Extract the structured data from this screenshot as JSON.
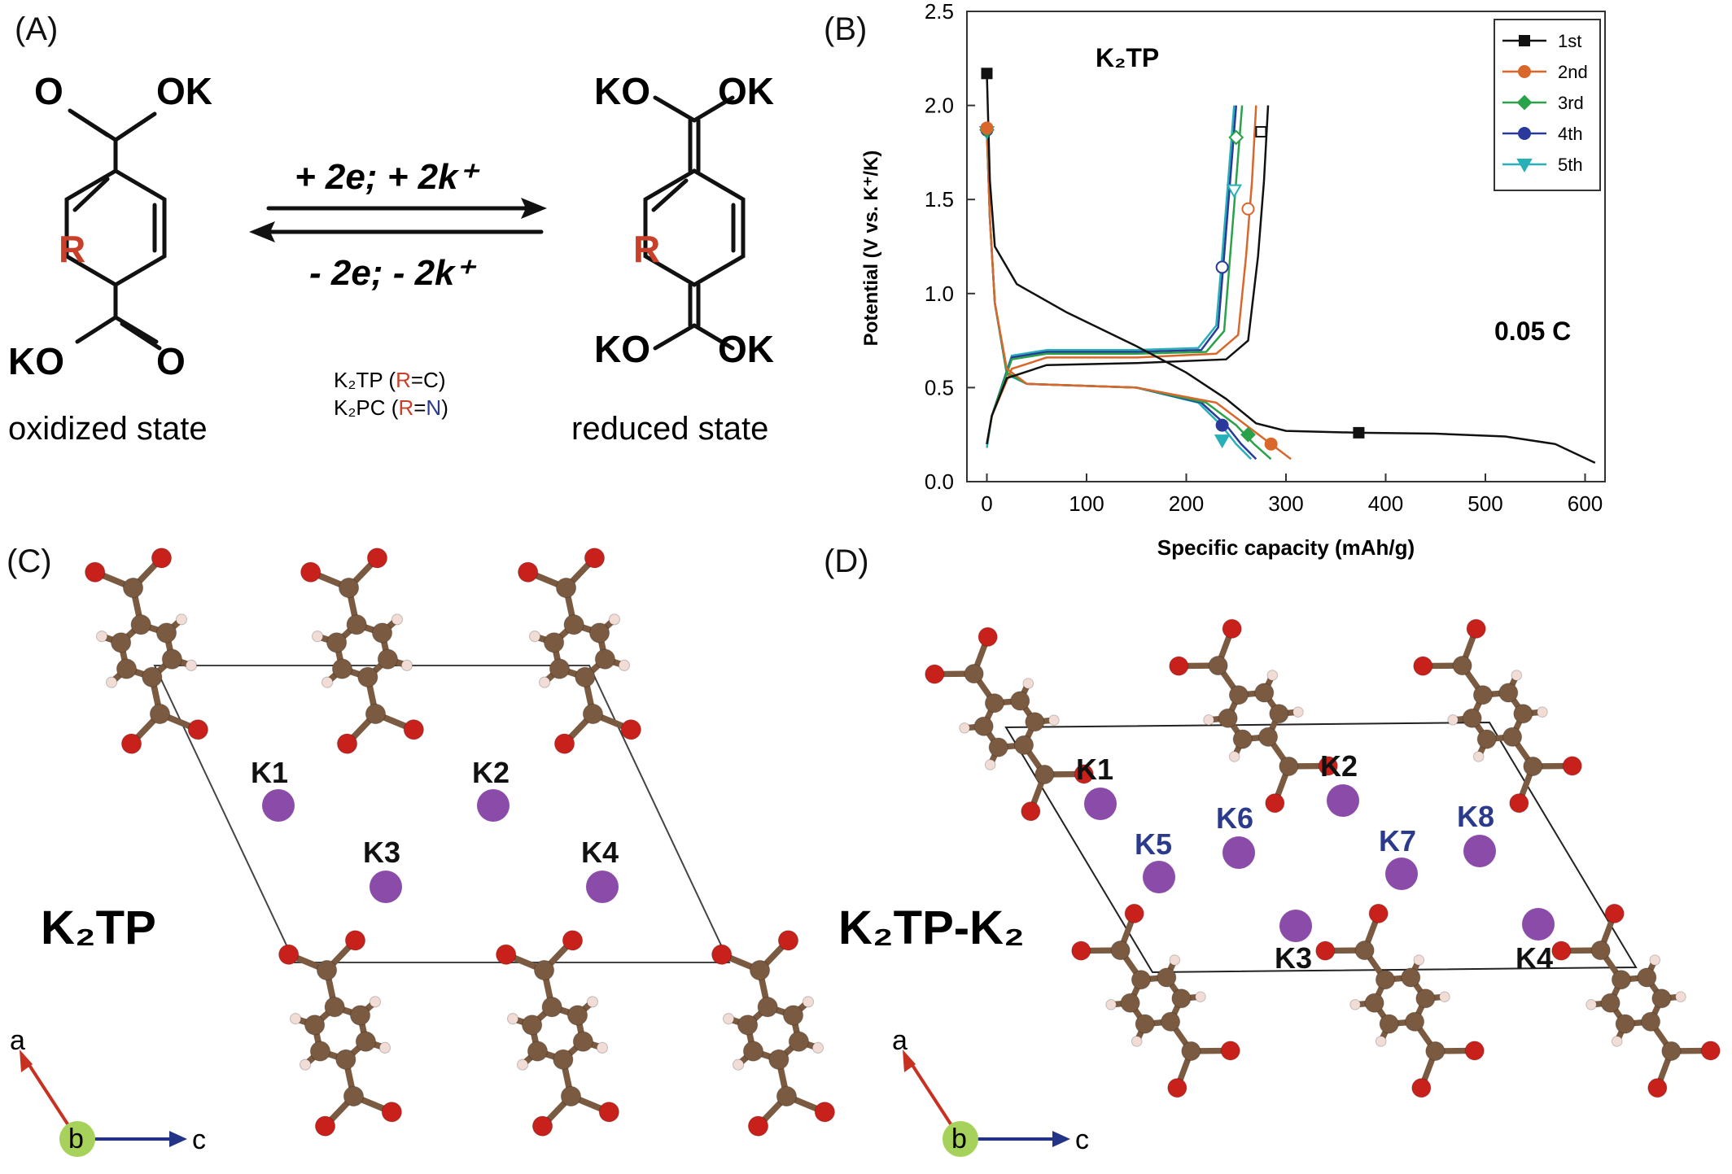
{
  "panels": {
    "a": {
      "label": "(A)",
      "oxidized": {
        "top_o": "O",
        "top_ok": "OK",
        "ring_r": "R",
        "bot_ko": "KO",
        "bot_o": "O",
        "state": "oxidized state"
      },
      "reduced": {
        "top_ko": "KO",
        "top_ok": "OK",
        "ring_r": "R",
        "bot_ko": "KO",
        "bot_ok": "OK",
        "state": "reduced state"
      },
      "forward": "+ 2e; + 2k⁺",
      "reverse": "- 2e; - 2k⁺",
      "species": [
        {
          "name": "K₂TP (",
          "r": "R",
          "eq": "=",
          "elem": "C",
          ")": ")"
        },
        {
          "name": "K₂PC (",
          "r": "R",
          "eq": "=",
          "elem": "N",
          ")": ")"
        }
      ]
    },
    "b": {
      "label": "(B)"
    },
    "c": {
      "label": "(C)",
      "title": "K₂TP",
      "k_labels": [
        "K1",
        "K2",
        "K3",
        "K4"
      ],
      "axis_a": "a",
      "axis_b": "b",
      "axis_c": "c"
    },
    "d": {
      "label": "(D)",
      "title": "K₂TP-K₂",
      "k_labels_black": [
        "K1",
        "K2",
        "K3",
        "K4"
      ],
      "k_labels_blue": [
        "K5",
        "K6",
        "K7",
        "K8"
      ],
      "axis_a": "a",
      "axis_b": "b",
      "axis_c": "c"
    }
  },
  "colors": {
    "red": "#c8402a",
    "blue": "#2b3a8c",
    "carbon": "#7a5a40",
    "oxygen": "#c8201a",
    "hydrogen": "#f2dcd6",
    "potassium": "#8a4ca8",
    "axis_a": "#c83020",
    "axis_c": "#223388",
    "axis_b": "#a6d15a"
  },
  "chart_data": {
    "type": "line",
    "title": "K₂TP",
    "annotation": "0.05 C",
    "xlabel": "Specific capacity (mAh/g)",
    "ylabel": "Potential (V vs. K⁺/K)",
    "xlim": [
      -20,
      620
    ],
    "ylim": [
      0,
      2.5
    ],
    "xticks": [
      0,
      100,
      200,
      300,
      400,
      500,
      600
    ],
    "yticks": [
      0.0,
      0.5,
      1.0,
      1.5,
      2.0,
      2.5
    ],
    "legend_position": "top-right",
    "series": [
      {
        "name": "1st",
        "color": "#111111",
        "marker": "square",
        "discharge": [
          [
            0,
            2.17
          ],
          [
            3,
            1.6
          ],
          [
            8,
            1.25
          ],
          [
            30,
            1.05
          ],
          [
            80,
            0.9
          ],
          [
            150,
            0.72
          ],
          [
            200,
            0.58
          ],
          [
            240,
            0.44
          ],
          [
            270,
            0.31
          ],
          [
            300,
            0.27
          ],
          [
            373,
            0.26
          ],
          [
            450,
            0.255
          ],
          [
            520,
            0.24
          ],
          [
            570,
            0.2
          ],
          [
            610,
            0.1
          ]
        ],
        "charge": [
          [
            0,
            0.2
          ],
          [
            5,
            0.35
          ],
          [
            20,
            0.55
          ],
          [
            60,
            0.62
          ],
          [
            150,
            0.63
          ],
          [
            240,
            0.65
          ],
          [
            262,
            0.75
          ],
          [
            272,
            1.2
          ],
          [
            278,
            1.6
          ],
          [
            282,
            2.0
          ]
        ],
        "markers": [
          [
            0,
            2.17
          ],
          [
            373,
            0.26
          ],
          [
            275,
            1.86
          ]
        ]
      },
      {
        "name": "2nd",
        "color": "#d9672b",
        "marker": "circle",
        "discharge": [
          [
            0,
            1.88
          ],
          [
            3,
            1.4
          ],
          [
            8,
            0.95
          ],
          [
            20,
            0.6
          ],
          [
            40,
            0.52
          ],
          [
            150,
            0.5
          ],
          [
            230,
            0.42
          ],
          [
            260,
            0.3
          ],
          [
            285,
            0.2
          ],
          [
            305,
            0.12
          ]
        ],
        "charge": [
          [
            0,
            0.2
          ],
          [
            5,
            0.35
          ],
          [
            25,
            0.6
          ],
          [
            60,
            0.66
          ],
          [
            150,
            0.66
          ],
          [
            230,
            0.68
          ],
          [
            252,
            0.78
          ],
          [
            260,
            1.2
          ],
          [
            266,
            1.6
          ],
          [
            270,
            2.0
          ]
        ],
        "markers": [
          [
            0,
            1.88
          ],
          [
            285,
            0.2
          ],
          [
            262,
            1.45
          ]
        ]
      },
      {
        "name": "3rd",
        "color": "#2aa24a",
        "marker": "diamond",
        "discharge": [
          [
            0,
            1.87
          ],
          [
            3,
            1.4
          ],
          [
            8,
            0.95
          ],
          [
            20,
            0.58
          ],
          [
            40,
            0.52
          ],
          [
            150,
            0.5
          ],
          [
            220,
            0.42
          ],
          [
            250,
            0.3
          ],
          [
            268,
            0.2
          ],
          [
            285,
            0.12
          ]
        ],
        "charge": [
          [
            0,
            0.2
          ],
          [
            5,
            0.35
          ],
          [
            25,
            0.65
          ],
          [
            60,
            0.68
          ],
          [
            150,
            0.68
          ],
          [
            220,
            0.69
          ],
          [
            238,
            0.8
          ],
          [
            244,
            1.2
          ],
          [
            250,
            1.6
          ],
          [
            256,
            2.0
          ]
        ],
        "markers": [
          [
            0,
            1.87
          ],
          [
            262,
            0.25
          ],
          [
            250,
            1.83
          ]
        ]
      },
      {
        "name": "4th",
        "color": "#2b3a9a",
        "marker": "circle",
        "discharge": [
          [
            0,
            1.87
          ],
          [
            3,
            1.4
          ],
          [
            8,
            0.95
          ],
          [
            20,
            0.58
          ],
          [
            40,
            0.52
          ],
          [
            150,
            0.5
          ],
          [
            215,
            0.42
          ],
          [
            240,
            0.3
          ],
          [
            255,
            0.2
          ],
          [
            270,
            0.12
          ]
        ],
        "charge": [
          [
            0,
            0.2
          ],
          [
            5,
            0.35
          ],
          [
            25,
            0.66
          ],
          [
            60,
            0.69
          ],
          [
            150,
            0.69
          ],
          [
            215,
            0.7
          ],
          [
            232,
            0.82
          ],
          [
            238,
            1.2
          ],
          [
            244,
            1.6
          ],
          [
            250,
            2.0
          ]
        ],
        "markers": [
          [
            0,
            1.87
          ],
          [
            236,
            0.3
          ],
          [
            236,
            1.14
          ]
        ]
      },
      {
        "name": "5th",
        "color": "#28b0b8",
        "marker": "triangle-down",
        "discharge": [
          [
            0,
            1.86
          ],
          [
            3,
            1.4
          ],
          [
            8,
            0.95
          ],
          [
            20,
            0.57
          ],
          [
            40,
            0.52
          ],
          [
            150,
            0.5
          ],
          [
            212,
            0.42
          ],
          [
            235,
            0.3
          ],
          [
            250,
            0.2
          ],
          [
            265,
            0.12
          ]
        ],
        "charge": [
          [
            0,
            0.18
          ],
          [
            5,
            0.35
          ],
          [
            25,
            0.67
          ],
          [
            60,
            0.7
          ],
          [
            150,
            0.7
          ],
          [
            212,
            0.71
          ],
          [
            230,
            0.83
          ],
          [
            236,
            1.2
          ],
          [
            242,
            1.6
          ],
          [
            248,
            2.0
          ]
        ],
        "markers": [
          [
            0,
            1.86
          ],
          [
            236,
            0.22
          ],
          [
            248,
            1.55
          ]
        ]
      }
    ]
  }
}
